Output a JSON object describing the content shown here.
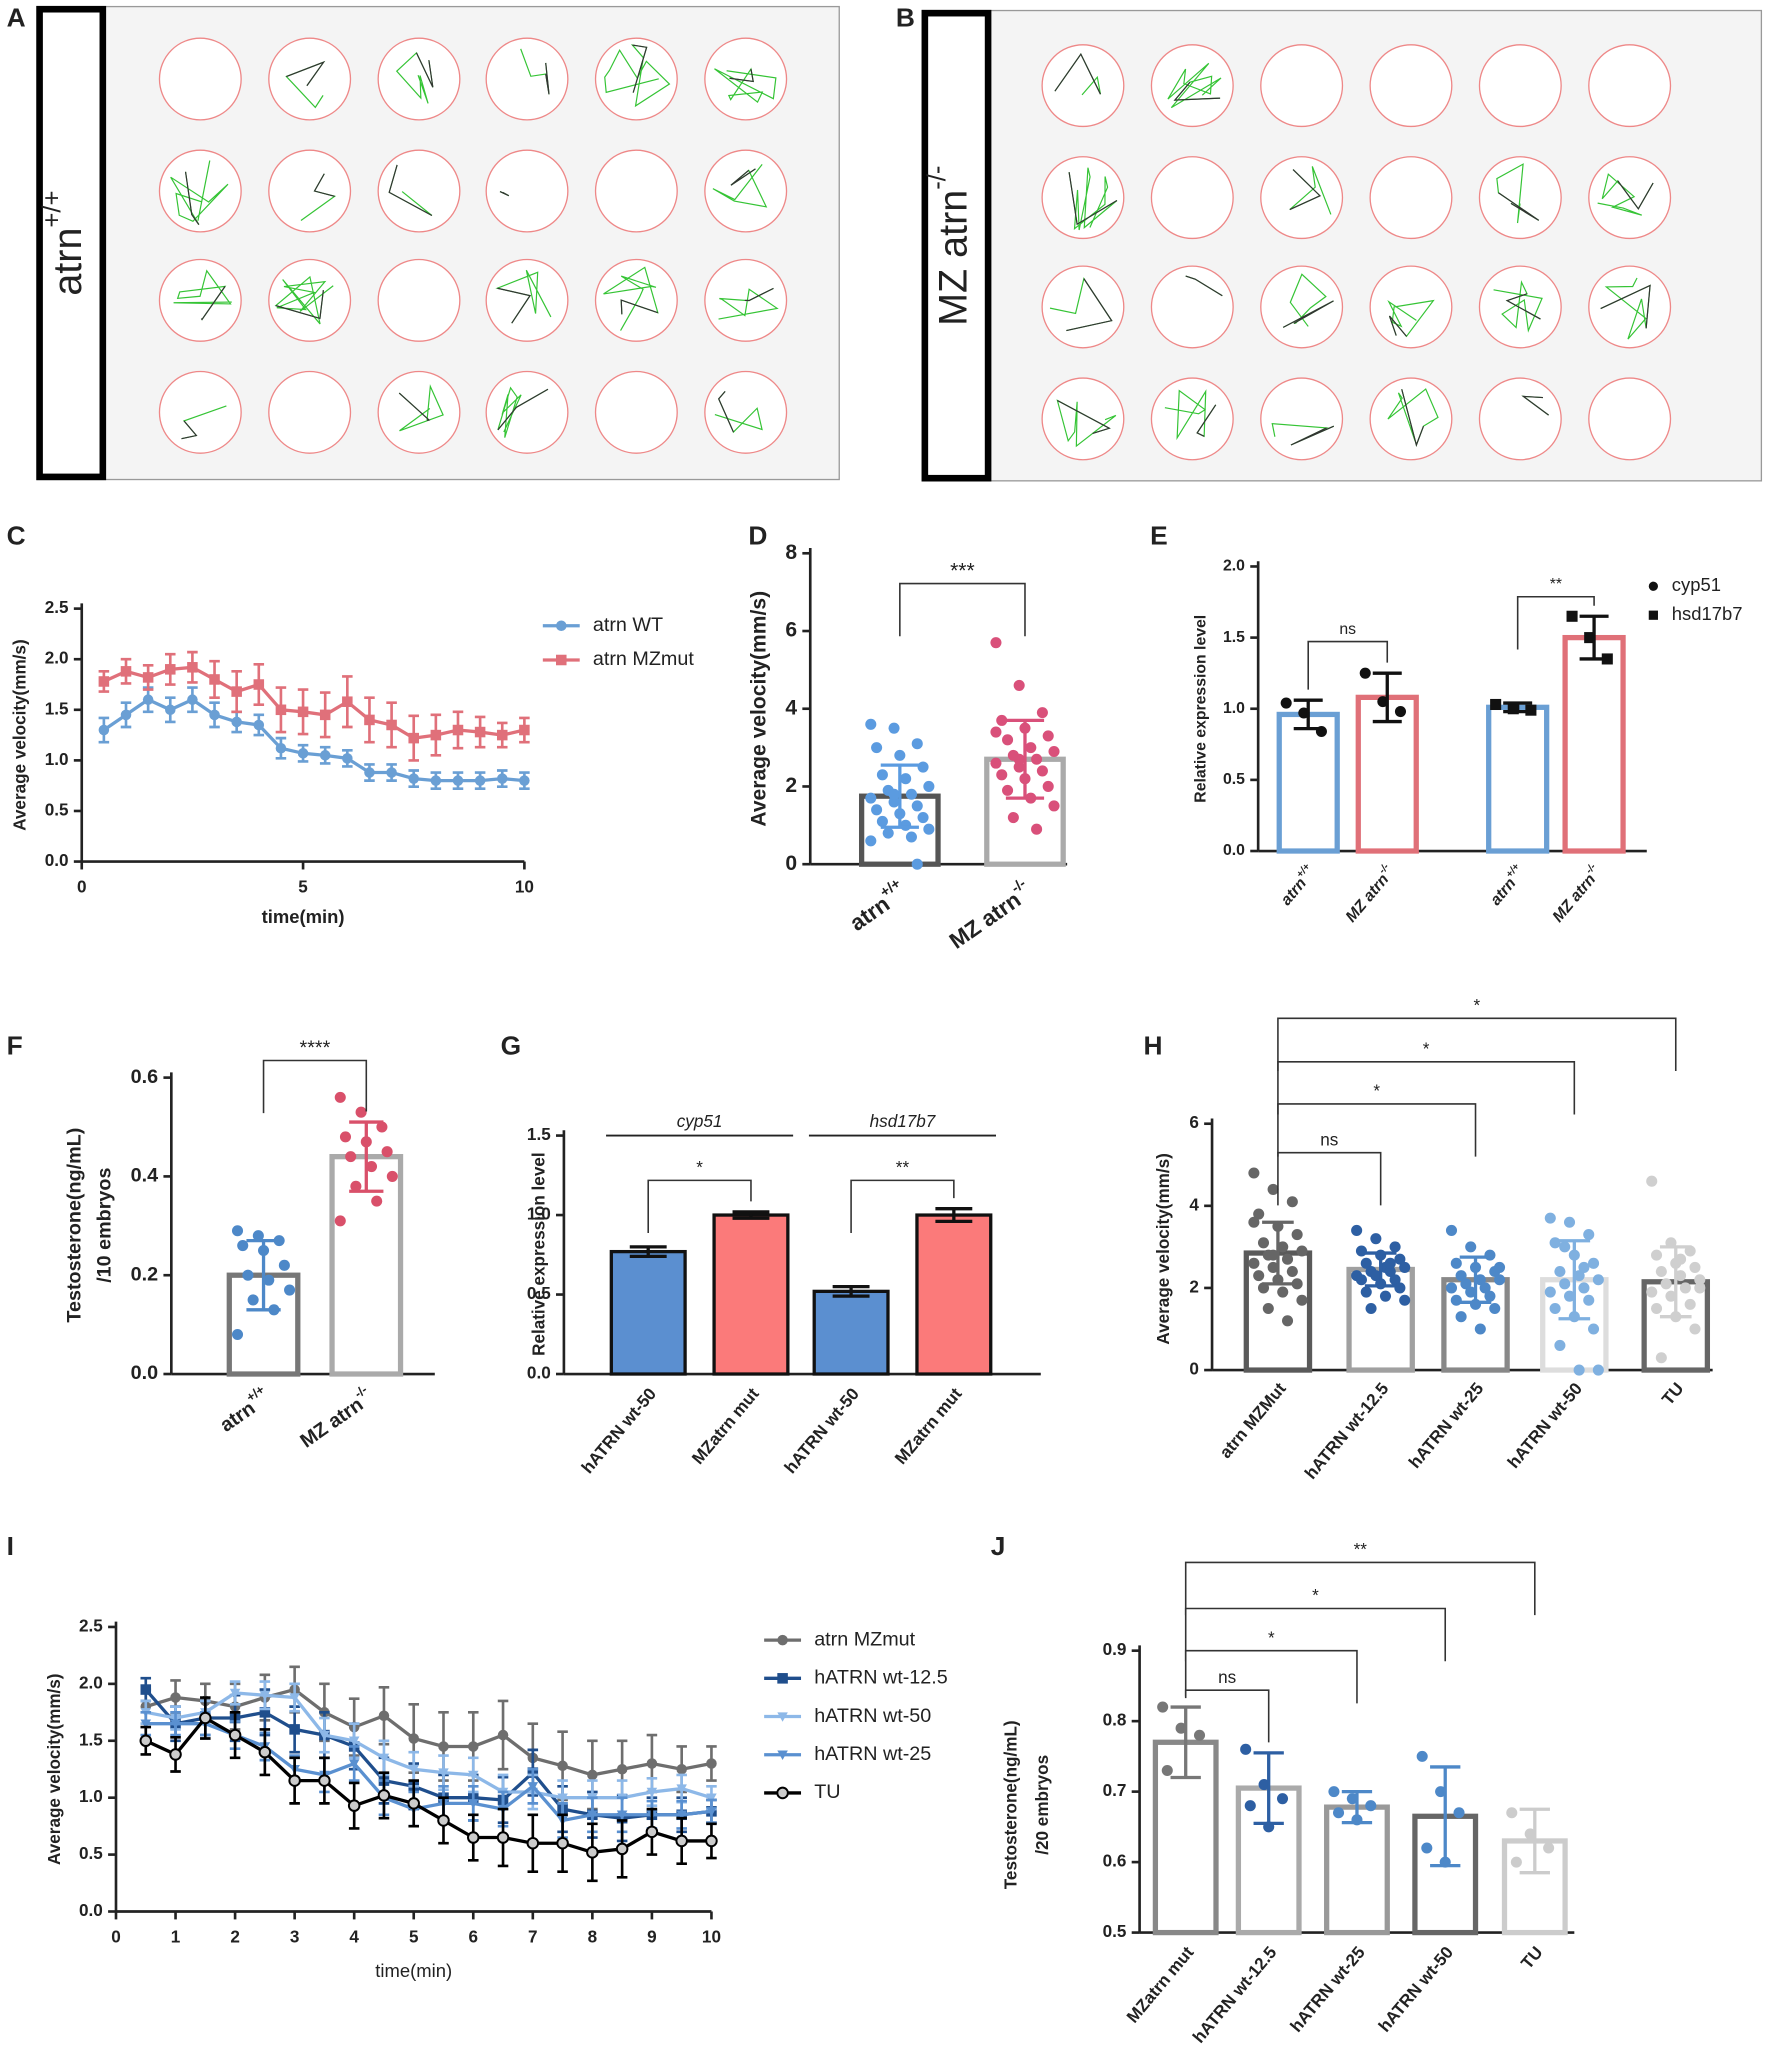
{
  "track_panels": [
    {
      "panel": "A",
      "label": "atrn",
      "label_sup": "+/+"
    },
    {
      "panel": "B",
      "label": "MZ atrn",
      "label_sup": "-/-"
    }
  ],
  "chart_data": [
    {
      "panel": "C",
      "type": "line",
      "x": [
        0.5,
        1,
        1.5,
        2,
        2.5,
        3,
        3.5,
        4,
        4.5,
        5,
        5.5,
        6,
        6.5,
        7,
        7.5,
        8,
        8.5,
        9,
        9.5,
        10
      ],
      "xlim": [
        0,
        10
      ],
      "xticks": [
        0,
        5,
        10
      ],
      "ylim": [
        0,
        2.5
      ],
      "yticks": [
        {
          "value": 0,
          "label": "0.0"
        },
        0.5,
        {
          "value": 1,
          "label": "1.0"
        },
        1.5,
        {
          "value": 2,
          "label": "2.0"
        },
        2.5
      ],
      "xlabel": "time(min)",
      "ylabel": "Average velocity(mm/s)",
      "series": [
        {
          "name": "atrn WT",
          "color": "#6a9fd4",
          "marker": "circle",
          "values": [
            1.3,
            1.45,
            1.6,
            1.5,
            1.6,
            1.45,
            1.38,
            1.35,
            1.12,
            1.07,
            1.05,
            1.02,
            0.88,
            0.88,
            0.82,
            0.8,
            0.8,
            0.8,
            0.82,
            0.8
          ],
          "errors": [
            0.12,
            0.12,
            0.12,
            0.12,
            0.12,
            0.12,
            0.1,
            0.1,
            0.1,
            0.08,
            0.08,
            0.08,
            0.08,
            0.08,
            0.08,
            0.08,
            0.08,
            0.08,
            0.08,
            0.08
          ]
        },
        {
          "name": "atrn MZmut",
          "color": "#e0707a",
          "marker": "square",
          "values": [
            1.78,
            1.88,
            1.82,
            1.9,
            1.92,
            1.8,
            1.68,
            1.75,
            1.5,
            1.48,
            1.45,
            1.58,
            1.4,
            1.35,
            1.22,
            1.25,
            1.3,
            1.28,
            1.25,
            1.3
          ],
          "errors": [
            0.1,
            0.12,
            0.12,
            0.15,
            0.15,
            0.18,
            0.2,
            0.2,
            0.22,
            0.22,
            0.22,
            0.25,
            0.22,
            0.22,
            0.22,
            0.2,
            0.18,
            0.15,
            0.12,
            0.12
          ]
        }
      ]
    },
    {
      "panel": "D",
      "type": "bar",
      "categories": [
        "atrn",
        "MZ atrn"
      ],
      "category_sups": [
        "+/+",
        "-/-"
      ],
      "values": [
        1.75,
        2.7
      ],
      "errors": [
        0.8,
        1.0
      ],
      "colors": [
        "#555555",
        "#aaaaaa"
      ],
      "point_colors": [
        "#5b9be0",
        "#d9507a"
      ],
      "points": [
        [
          3.6,
          3.5,
          3.1,
          3.0,
          2.8,
          2.5,
          2.3,
          2.2,
          2.0,
          1.9,
          1.8,
          1.7,
          1.6,
          1.5,
          1.4,
          1.3,
          1.2,
          1.1,
          1.0,
          0.9,
          0.8,
          0.7,
          0.6,
          1.8,
          0
        ],
        [
          5.7,
          4.6,
          3.9,
          3.7,
          3.5,
          3.3,
          3.2,
          3.0,
          2.9,
          2.8,
          2.7,
          2.6,
          2.5,
          2.4,
          2.3,
          2.2,
          2.0,
          1.9,
          1.7,
          1.5,
          1.2,
          0.9,
          3.4,
          2.7
        ]
      ],
      "ylim": [
        0,
        8
      ],
      "yticks": [
        0,
        2,
        4,
        6,
        8
      ],
      "ylabel": "Average velocity(mm/s)",
      "comparisons": [
        {
          "from": 0,
          "to": 1,
          "label": "***"
        }
      ]
    },
    {
      "panel": "E",
      "type": "bar",
      "categories": [
        "atrn",
        "MZ atrn",
        "atrn",
        "MZ atrn"
      ],
      "category_sups": [
        "+/+",
        "-/-",
        "+/+",
        "-/-"
      ],
      "values": [
        0.96,
        1.08,
        1.01,
        1.5
      ],
      "errors": [
        0.1,
        0.17,
        0.03,
        0.15
      ],
      "colors": [
        "#6a9fd4",
        "#e07078",
        "#6a9fd4",
        "#e07078"
      ],
      "point_colors": [
        "#111111",
        "#111111",
        "#111111",
        "#111111"
      ],
      "point_markers": [
        "circle",
        "circle",
        "square",
        "square"
      ],
      "points": [
        [
          1.04,
          0.97,
          0.84
        ],
        [
          1.25,
          1.05,
          0.98
        ],
        [
          1.03,
          1.0,
          0.99
        ],
        [
          1.65,
          1.5,
          1.35
        ]
      ],
      "legend": [
        {
          "name": "cyp51",
          "marker": "circle"
        },
        {
          "name": "hsd17b7",
          "marker": "square"
        }
      ],
      "ylim": [
        0,
        2
      ],
      "yticks": [
        {
          "value": 0,
          "label": "0.0"
        },
        0.5,
        {
          "value": 1,
          "label": "1.0"
        },
        1.5,
        {
          "value": 2,
          "label": "2.0"
        }
      ],
      "ylabel": "Relative expression level",
      "comparisons": [
        {
          "from": 0,
          "to": 1,
          "label": "ns"
        },
        {
          "from": 2,
          "to": 3,
          "label": "**"
        }
      ]
    },
    {
      "panel": "F",
      "type": "bar",
      "categories": [
        "atrn",
        "MZ atrn"
      ],
      "category_sups": [
        "+/+",
        "-/-"
      ],
      "values": [
        0.2,
        0.44
      ],
      "errors": [
        0.07,
        0.07
      ],
      "colors": [
        "#777777",
        "#aaaaaa"
      ],
      "point_colors": [
        "#4d88c8",
        "#d9506a"
      ],
      "points": [
        [
          0.29,
          0.28,
          0.27,
          0.26,
          0.25,
          0.22,
          0.2,
          0.19,
          0.17,
          0.15,
          0.13,
          0.08
        ],
        [
          0.56,
          0.53,
          0.5,
          0.48,
          0.47,
          0.45,
          0.44,
          0.42,
          0.4,
          0.38,
          0.35,
          0.31
        ]
      ],
      "ylim": [
        0,
        0.6
      ],
      "yticks": [
        {
          "value": 0,
          "label": "0.0"
        },
        0.2,
        0.4,
        0.6
      ],
      "ylabel": [
        "Testosterone(ng/mL)",
        "/10 embryos"
      ],
      "comparisons": [
        {
          "from": 0,
          "to": 1,
          "label": "****"
        }
      ]
    },
    {
      "panel": "G",
      "type": "bar",
      "categories": [
        "hATRN wt-50",
        "MZatrn mut",
        "hATRN wt-50",
        "MZatrn mut"
      ],
      "group_labels": [
        "cyp51",
        "hsd17b7"
      ],
      "filled": true,
      "values": [
        0.77,
        1.0,
        0.52,
        1.0
      ],
      "errors": [
        0.03,
        0.02,
        0.03,
        0.04
      ],
      "colors": [
        "#5b8fd0",
        "#fb7a7a",
        "#5b8fd0",
        "#fb7a7a"
      ],
      "ylim": [
        0,
        1.5
      ],
      "yticks": [
        {
          "value": 0,
          "label": "0.0"
        },
        0.5,
        {
          "value": 1,
          "label": "1.0"
        },
        1.5
      ],
      "ylabel": "Relative expression level",
      "comparisons": [
        {
          "from": 0,
          "to": 1,
          "label": "*"
        },
        {
          "from": 2,
          "to": 3,
          "label": "**"
        }
      ]
    },
    {
      "panel": "H",
      "type": "bar",
      "categories": [
        "atrn MZMut",
        "hATRN wt-12.5",
        "hATRN wt-25",
        "hATRN wt-50",
        "TU"
      ],
      "values": [
        2.85,
        2.45,
        2.2,
        2.2,
        2.15
      ],
      "errors": [
        0.75,
        0.4,
        0.55,
        0.95,
        0.85
      ],
      "colors": [
        "#5a5a5a",
        "#a0a0a0",
        "#888888",
        "#dddddd",
        "#666666"
      ],
      "point_colors": [
        "#666666",
        "#2d5fa3",
        "#4d88c8",
        "#7fb0e0",
        "#cfcfcf"
      ],
      "points": [
        [
          4.8,
          4.4,
          4.1,
          3.8,
          3.5,
          3.3,
          3.1,
          3.0,
          2.9,
          2.8,
          2.7,
          2.6,
          2.5,
          2.4,
          2.3,
          2.2,
          2.1,
          2.0,
          1.9,
          1.7,
          1.5,
          1.2,
          3.6,
          2.8
        ],
        [
          3.4,
          3.2,
          3.0,
          2.9,
          2.8,
          2.7,
          2.6,
          2.5,
          2.5,
          2.4,
          2.4,
          2.3,
          2.3,
          2.2,
          2.2,
          2.1,
          2.0,
          1.9,
          1.8,
          1.7,
          1.5,
          2.6
        ],
        [
          3.4,
          3.0,
          2.8,
          2.6,
          2.5,
          2.4,
          2.3,
          2.2,
          2.2,
          2.1,
          2.0,
          2.0,
          1.9,
          1.8,
          1.7,
          1.6,
          1.5,
          1.3,
          1.0,
          2.5
        ],
        [
          3.7,
          3.6,
          3.3,
          3.1,
          2.8,
          2.6,
          2.4,
          2.3,
          2.2,
          2.1,
          2.0,
          1.9,
          1.8,
          1.7,
          1.5,
          1.3,
          1.0,
          0.6,
          0,
          0,
          3.0,
          2.5
        ],
        [
          4.6,
          3.1,
          2.9,
          2.8,
          2.6,
          2.5,
          2.4,
          2.3,
          2.2,
          2.1,
          2.0,
          1.9,
          1.8,
          1.6,
          1.5,
          1.3,
          1.0,
          0.3,
          2.7,
          2.0
        ]
      ],
      "ylim": [
        0,
        6
      ],
      "yticks": [
        0,
        2,
        4,
        6
      ],
      "ylabel": "Average velocity(mm/s)",
      "comparisons": [
        {
          "from": 0,
          "to": 1,
          "label": "ns"
        },
        {
          "from": 0,
          "to": 2,
          "label": "*"
        },
        {
          "from": 0,
          "to": 3,
          "label": "*"
        },
        {
          "from": 0,
          "to": 4,
          "label": "*"
        }
      ]
    },
    {
      "panel": "I",
      "type": "line",
      "x": [
        0.5,
        1,
        1.5,
        2,
        2.5,
        3,
        3.5,
        4,
        4.5,
        5,
        5.5,
        6,
        6.5,
        7,
        7.5,
        8,
        8.5,
        9,
        9.5,
        10
      ],
      "xlim": [
        0,
        10
      ],
      "xticks": [
        0,
        1,
        2,
        3,
        4,
        5,
        6,
        7,
        8,
        9,
        10
      ],
      "ylim": [
        0,
        2.5
      ],
      "yticks": [
        {
          "value": 0,
          "label": "0.0"
        },
        0.5,
        {
          "value": 1,
          "label": "1.0"
        },
        1.5,
        {
          "value": 2,
          "label": "2.0"
        },
        2.5
      ],
      "xlabel": "time(min)",
      "ylabel": "Average velocity(mm/s)",
      "series": [
        {
          "name": "atrn MZmut",
          "color": "#6e6e6e",
          "marker": "circle",
          "values": [
            1.8,
            1.88,
            1.85,
            1.8,
            1.88,
            1.95,
            1.75,
            1.62,
            1.72,
            1.52,
            1.45,
            1.45,
            1.55,
            1.35,
            1.28,
            1.2,
            1.25,
            1.3,
            1.25,
            1.3
          ],
          "errors": [
            0.15,
            0.15,
            0.15,
            0.2,
            0.2,
            0.2,
            0.25,
            0.25,
            0.25,
            0.3,
            0.3,
            0.3,
            0.3,
            0.3,
            0.3,
            0.3,
            0.25,
            0.25,
            0.2,
            0.15
          ]
        },
        {
          "name": "hATRN wt-12.5",
          "color": "#1f4e8c",
          "marker": "square",
          "values": [
            1.95,
            1.65,
            1.7,
            1.7,
            1.75,
            1.6,
            1.55,
            1.45,
            1.15,
            1.1,
            1.0,
            1.0,
            0.98,
            1.22,
            0.9,
            0.85,
            0.82,
            0.85,
            0.85,
            0.88
          ],
          "errors": [
            0.1,
            0.15,
            0.15,
            0.2,
            0.2,
            0.2,
            0.2,
            0.2,
            0.2,
            0.2,
            0.2,
            0.2,
            0.2,
            0.2,
            0.2,
            0.2,
            0.2,
            0.15,
            0.15,
            0.1
          ]
        },
        {
          "name": "hATRN wt-50",
          "color": "#8db8e8",
          "marker": "triangle",
          "values": [
            1.75,
            1.7,
            1.75,
            1.92,
            1.9,
            1.88,
            1.55,
            1.5,
            1.35,
            1.25,
            1.22,
            1.2,
            1.05,
            1.05,
            1.0,
            1.0,
            1.0,
            1.05,
            1.08,
            1.0
          ],
          "errors": [
            0.1,
            0.1,
            0.1,
            0.1,
            0.12,
            0.12,
            0.15,
            0.15,
            0.15,
            0.15,
            0.15,
            0.15,
            0.15,
            0.15,
            0.15,
            0.15,
            0.15,
            0.12,
            0.12,
            0.1
          ]
        },
        {
          "name": "hATRN wt-25",
          "color": "#5a90d0",
          "marker": "triangle",
          "values": [
            1.65,
            1.65,
            1.65,
            1.55,
            1.45,
            1.25,
            1.2,
            1.3,
            1.0,
            0.9,
            0.95,
            0.95,
            0.9,
            1.1,
            0.8,
            0.85,
            0.85,
            0.85,
            0.85,
            0.88
          ],
          "errors": [
            0.1,
            0.1,
            0.1,
            0.12,
            0.12,
            0.12,
            0.15,
            0.15,
            0.15,
            0.15,
            0.15,
            0.15,
            0.15,
            0.15,
            0.15,
            0.15,
            0.15,
            0.12,
            0.12,
            0.1
          ]
        },
        {
          "name": "TU",
          "color": "#000000",
          "marker": "open-circle",
          "values": [
            1.5,
            1.38,
            1.7,
            1.55,
            1.4,
            1.15,
            1.15,
            0.93,
            1.02,
            0.95,
            0.8,
            0.65,
            0.65,
            0.6,
            0.6,
            0.52,
            0.55,
            0.7,
            0.62,
            0.62
          ],
          "errors": [
            0.12,
            0.15,
            0.18,
            0.2,
            0.2,
            0.2,
            0.2,
            0.2,
            0.2,
            0.2,
            0.2,
            0.2,
            0.25,
            0.25,
            0.25,
            0.25,
            0.25,
            0.2,
            0.2,
            0.15
          ]
        }
      ]
    },
    {
      "panel": "J",
      "type": "bar",
      "categories": [
        "MZatrn mut",
        "hATRN wt-12.5",
        "hATRN wt-25",
        "hATRN wt-50",
        "TU"
      ],
      "values": [
        0.77,
        0.705,
        0.678,
        0.665,
        0.63
      ],
      "errors": [
        0.05,
        0.05,
        0.022,
        0.07,
        0.045
      ],
      "colors": [
        "#888888",
        "#aaaaaa",
        "#999999",
        "#666666",
        "#cccccc"
      ],
      "point_colors": [
        "#777777",
        "#2d5fa3",
        "#4d88c8",
        "#4d88c8",
        "#cccccc"
      ],
      "points": [
        [
          0.82,
          0.79,
          0.78,
          0.73
        ],
        [
          0.76,
          0.71,
          0.69,
          0.68,
          0.65
        ],
        [
          0.7,
          0.69,
          0.68,
          0.67,
          0.66
        ],
        [
          0.75,
          0.7,
          0.67,
          0.62,
          0.6
        ],
        [
          0.67,
          0.64,
          0.62,
          0.6
        ]
      ],
      "ylim": [
        0.5,
        0.9
      ],
      "yticks": [
        0.5,
        0.6,
        0.7,
        0.8,
        0.9
      ],
      "ylabel": [
        "Testosterone(ng/mL)",
        "/20 embryos"
      ],
      "comparisons": [
        {
          "from": 0,
          "to": 1,
          "label": "ns"
        },
        {
          "from": 0,
          "to": 2,
          "label": "*"
        },
        {
          "from": 0,
          "to": 3,
          "label": "*"
        },
        {
          "from": 0,
          "to": 4,
          "label": "**"
        }
      ]
    }
  ]
}
